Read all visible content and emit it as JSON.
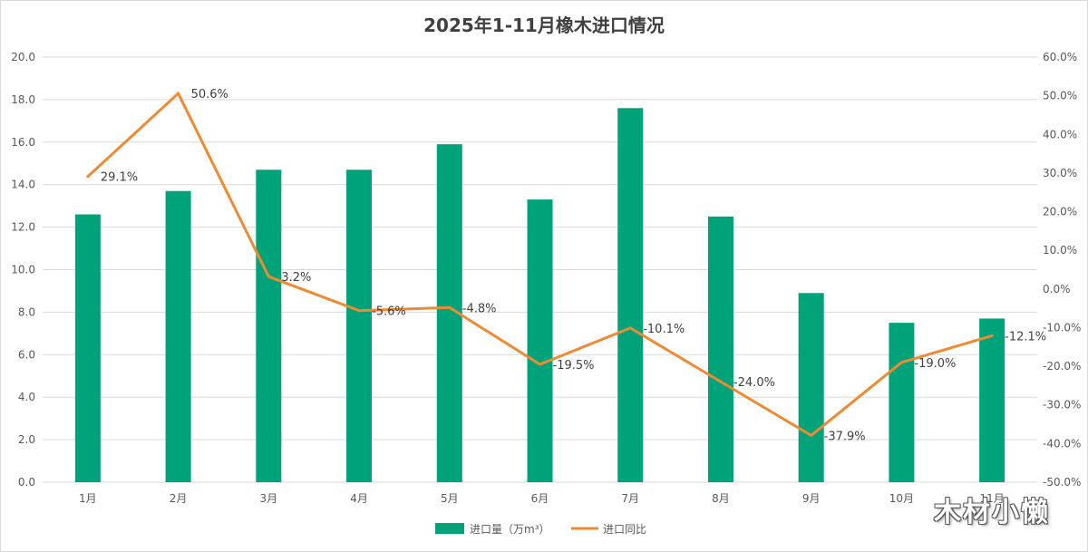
{
  "chart_data": {
    "type": "bar+line",
    "title": "2025年1-11月橡木进口情况",
    "categories": [
      "1月",
      "2月",
      "3月",
      "4月",
      "5月",
      "6月",
      "7月",
      "8月",
      "9月",
      "10月",
      "11月"
    ],
    "series": [
      {
        "name": "进口量（万m³）",
        "type": "bar",
        "axis": "left",
        "color": "#00A27A",
        "values": [
          12.6,
          13.7,
          14.7,
          14.7,
          15.9,
          13.3,
          17.6,
          12.5,
          8.9,
          7.5,
          7.7
        ]
      },
      {
        "name": "进口同比",
        "type": "line",
        "axis": "right",
        "color": "#ED8B35",
        "values": [
          29.1,
          50.6,
          3.2,
          -5.6,
          -4.8,
          -19.5,
          -10.1,
          -24.0,
          -37.9,
          -19.0,
          -12.1
        ],
        "labels": [
          "29.1%",
          "50.6%",
          "3.2%",
          "-5.6%",
          "-4.8%",
          "-19.5%",
          "-10.1%",
          "-24.0%",
          "-37.9%",
          "-19.0%",
          "-12.1%"
        ]
      }
    ],
    "y_left": {
      "min": 0,
      "max": 20,
      "step": 2,
      "ticks": [
        "0.0",
        "2.0",
        "4.0",
        "6.0",
        "8.0",
        "10.0",
        "12.0",
        "14.0",
        "16.0",
        "18.0",
        "20.0"
      ]
    },
    "y_right": {
      "min": -50,
      "max": 60,
      "step": 10,
      "ticks": [
        "-50.0%",
        "-40.0%",
        "-30.0%",
        "-20.0%",
        "-10.0%",
        "0.0%",
        "10.0%",
        "20.0%",
        "30.0%",
        "40.0%",
        "50.0%",
        "60.0%"
      ]
    },
    "grid": true,
    "legend": "bottom-center"
  },
  "watermark": "木材小懒"
}
